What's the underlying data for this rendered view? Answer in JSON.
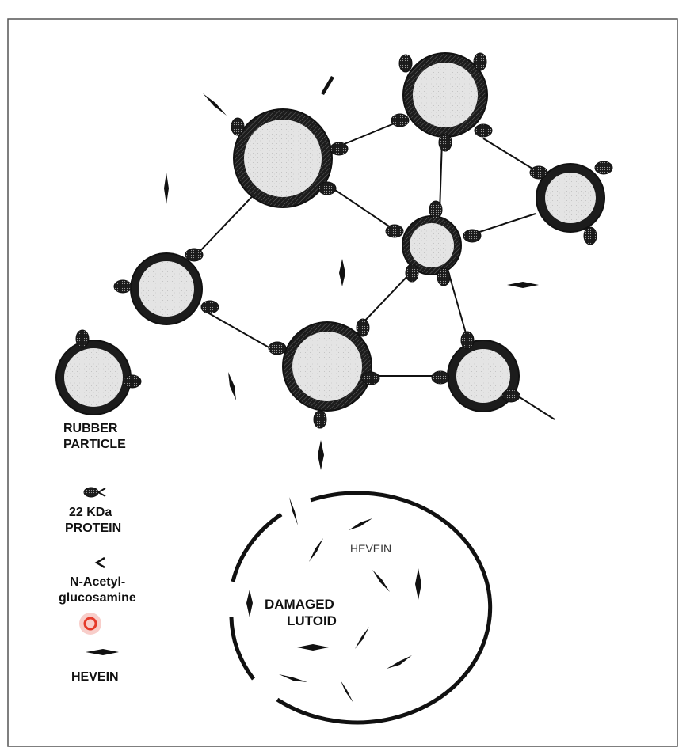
{
  "legend": {
    "rubber_particle": [
      "RUBBER",
      "PARTICLE"
    ],
    "protein": [
      "22 KDa",
      "PROTEIN"
    ],
    "nag": [
      "N-Acetyl-",
      "glucosamine"
    ],
    "hevein": "HEVEIN"
  },
  "lutoid": {
    "label": [
      "DAMAGED",
      "LUTOID"
    ],
    "inner_label": "HEVEIN"
  },
  "colors": {
    "ring": "#1c1c1c",
    "particle_fill": "#e4e4e4",
    "stroke": "#111111",
    "cursor_marker": "#e53a2a"
  },
  "icons": {
    "protein": "protein-icon",
    "nag": "nag-icon",
    "hevein": "hevein-icon",
    "cursor": "cursor-marker-icon"
  }
}
